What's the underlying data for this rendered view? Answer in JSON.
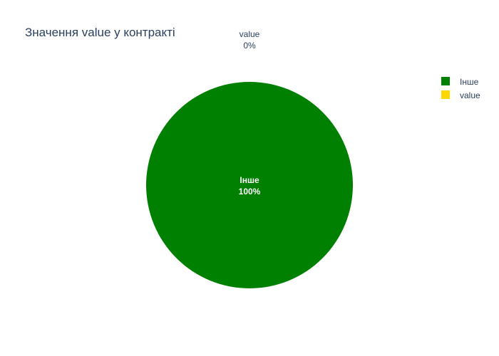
{
  "chart_data": {
    "type": "pie",
    "title": "Значення value у контракті",
    "labels": [
      "Інше",
      "value"
    ],
    "values": [
      100,
      0
    ],
    "percent_labels": [
      "100%",
      "0%"
    ],
    "colors": [
      "#008000",
      "#ffd700"
    ],
    "legend": {
      "placement": "top-right",
      "entries": [
        "Інше",
        "value"
      ]
    }
  }
}
